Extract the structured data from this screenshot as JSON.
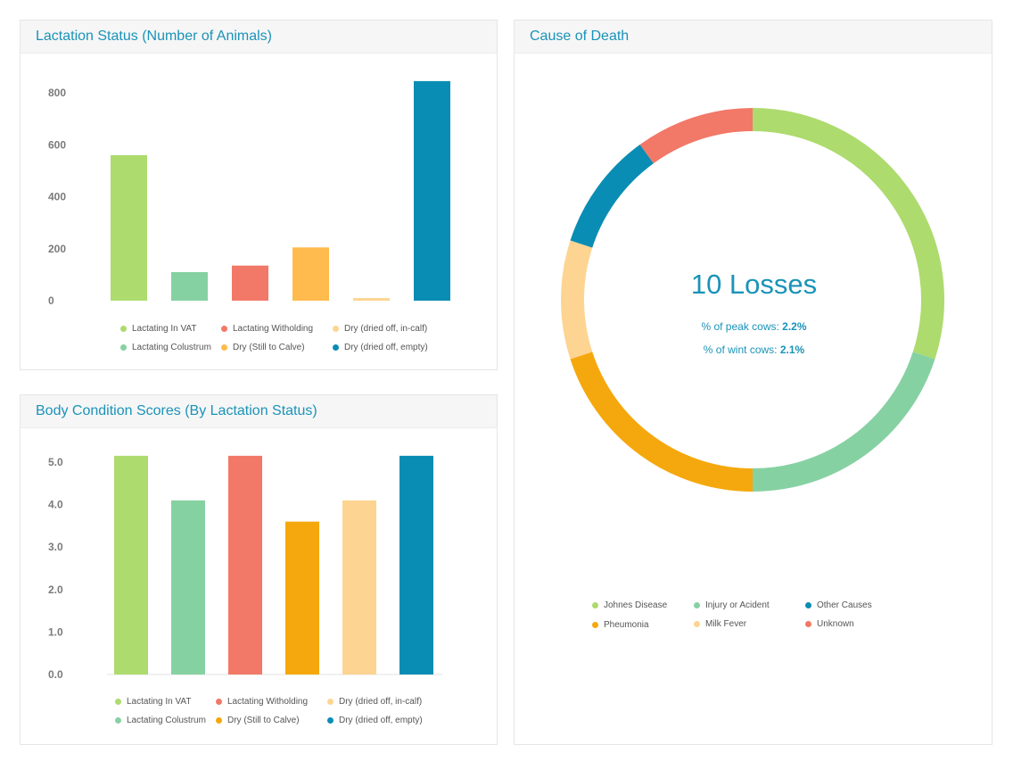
{
  "panels": {
    "lactation_title": "Lactation Status (Number of Animals)",
    "bcs_title": "Body Condition Scores (By Lactation Status)",
    "cause_title": "Cause of Death"
  },
  "colors": {
    "accent": "#1a93b8",
    "lactating_in_vat": "#addb6e",
    "lactating_colustrum": "#86d1a2",
    "lactating_witholding": "#f27867",
    "dry_still_to_calve": "#ffbb4e",
    "dry_in_calf": "#fdd491",
    "dry_empty": "#0a8db4",
    "pneumonia": "#f5a80d"
  },
  "chart_data": [
    {
      "type": "bar",
      "title": "Lactation Status (Number of Animals)",
      "categories": [
        "Lactating In VAT",
        "Lactating Colustrum",
        "Lactating Witholding",
        "Dry (Still to Calve)",
        "Dry (dried off, in-calf)",
        "Dry (dried off, empty)"
      ],
      "values": [
        560,
        110,
        135,
        205,
        10,
        845
      ],
      "colors": [
        "#addb6e",
        "#86d1a2",
        "#f27867",
        "#ffbb4e",
        "#fdd491",
        "#0a8db4"
      ],
      "ylim": [
        0,
        800
      ],
      "yticks": [
        "0",
        "200",
        "400",
        "600",
        "800"
      ],
      "legend": [
        {
          "label": "Lactating In VAT",
          "color": "#addb6e"
        },
        {
          "label": "Lactating Witholding",
          "color": "#f27867"
        },
        {
          "label": "Dry (dried off, in-calf)",
          "color": "#fdd491"
        },
        {
          "label": "Lactating Colustrum",
          "color": "#86d1a2"
        },
        {
          "label": "Dry (Still to Calve)",
          "color": "#ffbb4e"
        },
        {
          "label": "Dry (dried off, empty)",
          "color": "#0a8db4"
        }
      ],
      "legend_position": "bottom"
    },
    {
      "type": "bar",
      "title": "Body Condition Scores (By Lactation Status)",
      "categories": [
        "Lactating In VAT",
        "Lactating Colustrum",
        "Lactating Witholding",
        "Dry (Still to Calve)",
        "Dry (dried off, in-calf)",
        "Dry (dried off, empty)"
      ],
      "values": [
        5.15,
        4.1,
        5.15,
        3.6,
        4.1,
        5.15
      ],
      "colors": [
        "#addb6e",
        "#86d1a2",
        "#f27867",
        "#f5a80d",
        "#fdd491",
        "#0a8db4"
      ],
      "ylim": [
        0,
        5
      ],
      "yticks": [
        "0.0",
        "1.0",
        "2.0",
        "3.0",
        "4.0",
        "5.0"
      ],
      "legend": [
        {
          "label": "Lactating In VAT",
          "color": "#addb6e"
        },
        {
          "label": "Lactating Witholding",
          "color": "#f27867"
        },
        {
          "label": "Dry (dried off, in-calf)",
          "color": "#fdd491"
        },
        {
          "label": "Lactating Colustrum",
          "color": "#86d1a2"
        },
        {
          "label": "Dry (Still to Calve)",
          "color": "#f5a80d"
        },
        {
          "label": "Dry (dried off, empty)",
          "color": "#0a8db4"
        }
      ],
      "legend_position": "bottom"
    },
    {
      "type": "pie",
      "title": "Cause of Death",
      "labels": [
        "Johnes Disease",
        "Injury or Acident",
        "Pheumonia",
        "Milk Fever",
        "Other Causes",
        "Unknown"
      ],
      "values": [
        3,
        2,
        2,
        1,
        1,
        1
      ],
      "colors": [
        "#addb6e",
        "#86d1a2",
        "#f5a80d",
        "#fdd491",
        "#0a8db4",
        "#f27867"
      ],
      "center": {
        "value": "10 Losses",
        "peak_label": "% of peak cows:",
        "peak_value": "2.2%",
        "wint_label": "% of wint cows:",
        "wint_value": "2.1%"
      },
      "legend": [
        {
          "label": "Johnes Disease",
          "color": "#addb6e"
        },
        {
          "label": "Injury or Acident",
          "color": "#86d1a2"
        },
        {
          "label": "Other Causes",
          "color": "#0a8db4"
        },
        {
          "label": "Pheumonia",
          "color": "#f5a80d"
        },
        {
          "label": "Milk Fever",
          "color": "#fdd491"
        },
        {
          "label": "Unknown",
          "color": "#f27867"
        }
      ],
      "legend_position": "bottom"
    }
  ]
}
